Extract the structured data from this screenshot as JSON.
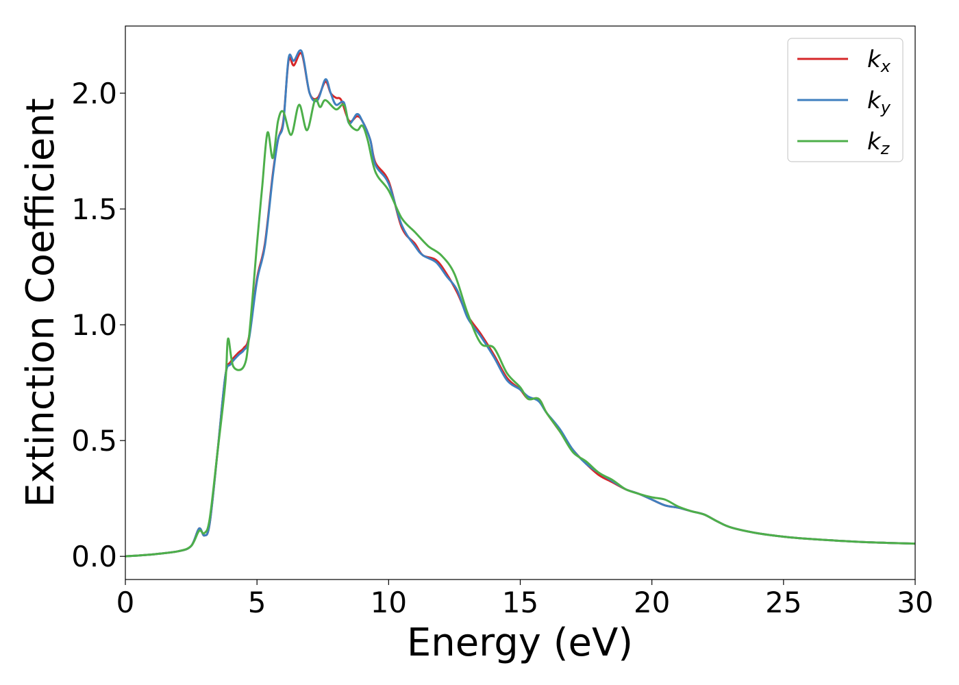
{
  "chart_data": {
    "type": "line",
    "xlabel": "Energy (eV)",
    "ylabel": "Extinction Coefficient",
    "xlim": [
      0,
      30
    ],
    "ylim": [
      -0.1,
      2.29
    ],
    "xticks": [
      0,
      5,
      10,
      15,
      20,
      25,
      30
    ],
    "yticks": [
      0.0,
      0.5,
      1.0,
      1.5,
      2.0
    ],
    "xtick_labels": [
      "0",
      "5",
      "10",
      "15",
      "20",
      "25",
      "30"
    ],
    "ytick_labels": [
      "0.0",
      "0.5",
      "1.0",
      "1.5",
      "2.0"
    ],
    "grid": false,
    "legend_position": "top-right",
    "series": [
      {
        "name": "k_x",
        "label_base": "k",
        "label_sub": "x",
        "color": "#d62728",
        "points": [
          [
            0,
            0
          ],
          [
            1,
            0.008
          ],
          [
            2,
            0.022
          ],
          [
            2.5,
            0.045
          ],
          [
            2.8,
            0.12
          ],
          [
            3.0,
            0.09
          ],
          [
            3.2,
            0.14
          ],
          [
            3.5,
            0.45
          ],
          [
            3.8,
            0.78
          ],
          [
            4.0,
            0.84
          ],
          [
            4.3,
            0.88
          ],
          [
            4.5,
            0.9
          ],
          [
            4.7,
            0.95
          ],
          [
            5.0,
            1.2
          ],
          [
            5.3,
            1.35
          ],
          [
            5.6,
            1.65
          ],
          [
            5.8,
            1.8
          ],
          [
            6.0,
            1.88
          ],
          [
            6.2,
            2.14
          ],
          [
            6.4,
            2.12
          ],
          [
            6.7,
            2.17
          ],
          [
            7.0,
            2.0
          ],
          [
            7.3,
            1.98
          ],
          [
            7.6,
            2.05
          ],
          [
            7.8,
            2.0
          ],
          [
            8.0,
            1.98
          ],
          [
            8.2,
            1.97
          ],
          [
            8.5,
            1.88
          ],
          [
            8.8,
            1.9
          ],
          [
            9.0,
            1.88
          ],
          [
            9.3,
            1.8
          ],
          [
            9.5,
            1.7
          ],
          [
            10.0,
            1.62
          ],
          [
            10.5,
            1.42
          ],
          [
            11.0,
            1.35
          ],
          [
            11.3,
            1.3
          ],
          [
            11.8,
            1.28
          ],
          [
            12.2,
            1.22
          ],
          [
            12.6,
            1.14
          ],
          [
            13.0,
            1.04
          ],
          [
            13.5,
            0.96
          ],
          [
            14.0,
            0.87
          ],
          [
            14.5,
            0.77
          ],
          [
            15.0,
            0.72
          ],
          [
            15.3,
            0.68
          ],
          [
            15.7,
            0.68
          ],
          [
            16.0,
            0.62
          ],
          [
            16.5,
            0.54
          ],
          [
            17.0,
            0.46
          ],
          [
            17.5,
            0.4
          ],
          [
            18.0,
            0.35
          ],
          [
            18.5,
            0.32
          ],
          [
            19.0,
            0.29
          ],
          [
            19.5,
            0.27
          ],
          [
            20.0,
            0.245
          ],
          [
            20.5,
            0.22
          ],
          [
            21.0,
            0.21
          ],
          [
            21.5,
            0.195
          ],
          [
            22.0,
            0.18
          ],
          [
            22.5,
            0.15
          ],
          [
            23.0,
            0.125
          ],
          [
            24.0,
            0.1
          ],
          [
            25.0,
            0.085
          ],
          [
            26.0,
            0.075
          ],
          [
            27.0,
            0.068
          ],
          [
            28.0,
            0.062
          ],
          [
            29.0,
            0.058
          ],
          [
            30.0,
            0.055
          ]
        ]
      },
      {
        "name": "k_y",
        "label_base": "k",
        "label_sub": "y",
        "color": "#3f7fbf",
        "points": [
          [
            0,
            0
          ],
          [
            1,
            0.008
          ],
          [
            2,
            0.022
          ],
          [
            2.5,
            0.045
          ],
          [
            2.8,
            0.12
          ],
          [
            3.0,
            0.09
          ],
          [
            3.2,
            0.14
          ],
          [
            3.5,
            0.45
          ],
          [
            3.8,
            0.78
          ],
          [
            4.0,
            0.83
          ],
          [
            4.3,
            0.87
          ],
          [
            4.5,
            0.89
          ],
          [
            4.7,
            0.94
          ],
          [
            5.0,
            1.19
          ],
          [
            5.3,
            1.34
          ],
          [
            5.6,
            1.64
          ],
          [
            5.8,
            1.8
          ],
          [
            6.0,
            1.87
          ],
          [
            6.2,
            2.15
          ],
          [
            6.4,
            2.14
          ],
          [
            6.7,
            2.18
          ],
          [
            7.0,
            2.0
          ],
          [
            7.3,
            1.97
          ],
          [
            7.6,
            2.06
          ],
          [
            7.8,
            2.0
          ],
          [
            8.0,
            1.95
          ],
          [
            8.3,
            1.96
          ],
          [
            8.5,
            1.87
          ],
          [
            8.8,
            1.91
          ],
          [
            9.0,
            1.88
          ],
          [
            9.3,
            1.8
          ],
          [
            9.5,
            1.69
          ],
          [
            10.0,
            1.61
          ],
          [
            10.5,
            1.43
          ],
          [
            11.0,
            1.34
          ],
          [
            11.3,
            1.3
          ],
          [
            11.8,
            1.27
          ],
          [
            12.2,
            1.21
          ],
          [
            12.6,
            1.15
          ],
          [
            13.0,
            1.03
          ],
          [
            13.5,
            0.95
          ],
          [
            14.0,
            0.86
          ],
          [
            14.5,
            0.76
          ],
          [
            15.0,
            0.72
          ],
          [
            15.3,
            0.69
          ],
          [
            15.7,
            0.67
          ],
          [
            16.0,
            0.62
          ],
          [
            16.5,
            0.55
          ],
          [
            17.0,
            0.46
          ],
          [
            17.5,
            0.4
          ],
          [
            18.0,
            0.36
          ],
          [
            18.5,
            0.325
          ],
          [
            19.0,
            0.29
          ],
          [
            19.5,
            0.27
          ],
          [
            20.0,
            0.245
          ],
          [
            20.5,
            0.22
          ],
          [
            21.0,
            0.21
          ],
          [
            21.5,
            0.195
          ],
          [
            22.0,
            0.18
          ],
          [
            22.5,
            0.15
          ],
          [
            23.0,
            0.125
          ],
          [
            24.0,
            0.1
          ],
          [
            25.0,
            0.085
          ],
          [
            26.0,
            0.075
          ],
          [
            27.0,
            0.068
          ],
          [
            28.0,
            0.062
          ],
          [
            29.0,
            0.058
          ],
          [
            30.0,
            0.055
          ]
        ]
      },
      {
        "name": "k_z",
        "label_base": "k",
        "label_sub": "z",
        "color": "#4daf4a",
        "points": [
          [
            0,
            0
          ],
          [
            1,
            0.008
          ],
          [
            2,
            0.022
          ],
          [
            2.5,
            0.045
          ],
          [
            2.8,
            0.11
          ],
          [
            3.0,
            0.1
          ],
          [
            3.2,
            0.16
          ],
          [
            3.5,
            0.45
          ],
          [
            3.8,
            0.75
          ],
          [
            3.9,
            0.94
          ],
          [
            4.1,
            0.82
          ],
          [
            4.5,
            0.82
          ],
          [
            4.7,
            0.95
          ],
          [
            5.0,
            1.35
          ],
          [
            5.2,
            1.6
          ],
          [
            5.4,
            1.83
          ],
          [
            5.6,
            1.72
          ],
          [
            5.8,
            1.88
          ],
          [
            6.0,
            1.92
          ],
          [
            6.3,
            1.82
          ],
          [
            6.6,
            1.95
          ],
          [
            6.9,
            1.84
          ],
          [
            7.2,
            1.97
          ],
          [
            7.4,
            1.94
          ],
          [
            7.6,
            1.97
          ],
          [
            8.0,
            1.93
          ],
          [
            8.3,
            1.95
          ],
          [
            8.5,
            1.87
          ],
          [
            8.8,
            1.84
          ],
          [
            9.0,
            1.86
          ],
          [
            9.2,
            1.8
          ],
          [
            9.5,
            1.66
          ],
          [
            10.0,
            1.58
          ],
          [
            10.5,
            1.46
          ],
          [
            11.0,
            1.4
          ],
          [
            11.5,
            1.34
          ],
          [
            12.0,
            1.3
          ],
          [
            12.5,
            1.22
          ],
          [
            13.0,
            1.05
          ],
          [
            13.5,
            0.92
          ],
          [
            14.0,
            0.9
          ],
          [
            14.5,
            0.79
          ],
          [
            15.0,
            0.73
          ],
          [
            15.3,
            0.68
          ],
          [
            15.7,
            0.68
          ],
          [
            16.0,
            0.62
          ],
          [
            16.5,
            0.54
          ],
          [
            17.0,
            0.45
          ],
          [
            17.5,
            0.41
          ],
          [
            18.0,
            0.36
          ],
          [
            18.5,
            0.33
          ],
          [
            19.0,
            0.29
          ],
          [
            19.5,
            0.27
          ],
          [
            20.0,
            0.255
          ],
          [
            20.5,
            0.245
          ],
          [
            21.0,
            0.215
          ],
          [
            21.5,
            0.195
          ],
          [
            22.0,
            0.18
          ],
          [
            22.5,
            0.15
          ],
          [
            23.0,
            0.125
          ],
          [
            24.0,
            0.1
          ],
          [
            25.0,
            0.085
          ],
          [
            26.0,
            0.075
          ],
          [
            27.0,
            0.068
          ],
          [
            28.0,
            0.062
          ],
          [
            29.0,
            0.058
          ],
          [
            30.0,
            0.055
          ]
        ]
      }
    ]
  }
}
